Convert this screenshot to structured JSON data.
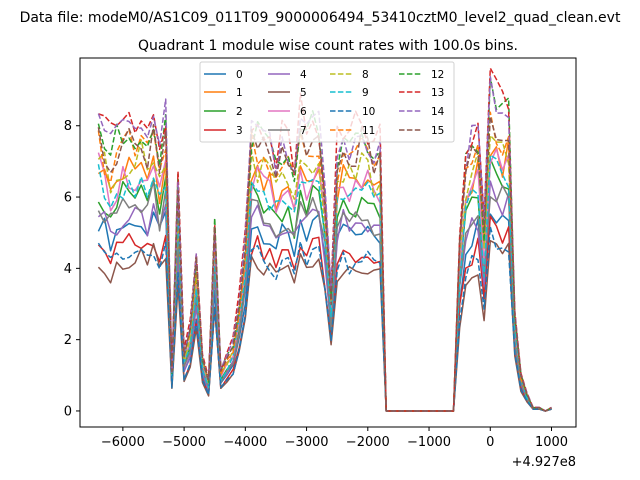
{
  "chart_data": {
    "type": "line",
    "suptitle": "Data file: modeM0/AS1C09_011T09_9000006494_53410cztM0_level2_quad_clean.evt",
    "title": "Quadrant 1 module wise count rates with 100.0s bins.",
    "xlabel": "",
    "ylabel": "",
    "x_offset_label": "+4.927e8",
    "xlim": [
      -6700,
      1400
    ],
    "ylim": [
      -0.45,
      9.9
    ],
    "xticks": [
      -6000,
      -5000,
      -4000,
      -3000,
      -2000,
      -1000,
      0,
      1000
    ],
    "xtick_labels": [
      "−6000",
      "−5000",
      "−4000",
      "−3000",
      "−2000",
      "−1000",
      "0",
      "1000"
    ],
    "yticks": [
      0,
      2,
      4,
      6,
      8
    ],
    "ytick_labels": [
      "0",
      "2",
      "4",
      "6",
      "8"
    ],
    "grid": false,
    "legend_position": "upper-center",
    "x": [
      -6400,
      -6300,
      -6200,
      -6100,
      -6000,
      -5900,
      -5800,
      -5700,
      -5600,
      -5500,
      -5400,
      -5300,
      -5200,
      -5100,
      -5000,
      -4900,
      -4800,
      -4700,
      -4600,
      -4500,
      -4400,
      -4300,
      -4200,
      -4100,
      -4000,
      -3900,
      -3800,
      -3700,
      -3600,
      -3500,
      -3400,
      -3300,
      -3200,
      -3100,
      -3000,
      -2900,
      -2800,
      -2700,
      -2600,
      -2500,
      -2400,
      -2300,
      -2200,
      -2100,
      -2000,
      -1900,
      -1800,
      -1700,
      -1600,
      -1500,
      -1400,
      -1300,
      -1200,
      -1100,
      -1000,
      -900,
      -800,
      -700,
      -600,
      -500,
      -400,
      -300,
      -200,
      -100,
      0,
      100,
      200,
      300,
      400,
      500,
      600,
      700,
      800,
      900,
      1000
    ],
    "series": [
      {
        "name": "0",
        "color": "#1f77b4",
        "style": "solid",
        "scale": 0.63
      },
      {
        "name": "1",
        "color": "#ff7f0e",
        "style": "solid",
        "scale": 0.81
      },
      {
        "name": "2",
        "color": "#2ca02c",
        "style": "solid",
        "scale": 0.73
      },
      {
        "name": "3",
        "color": "#d62728",
        "style": "solid",
        "scale": 0.56
      },
      {
        "name": "4",
        "color": "#9467bd",
        "style": "solid",
        "scale": 0.66
      },
      {
        "name": "5",
        "color": "#8c564b",
        "style": "solid",
        "scale": 0.5
      },
      {
        "name": "6",
        "color": "#e377c2",
        "style": "solid",
        "scale": 0.79
      },
      {
        "name": "7",
        "color": "#7f7f7f",
        "style": "solid",
        "scale": 0.69
      },
      {
        "name": "8",
        "color": "#bcbd22",
        "style": "dashed",
        "scale": 0.84
      },
      {
        "name": "9",
        "color": "#17becf",
        "style": "dashed",
        "scale": 0.76
      },
      {
        "name": "10",
        "color": "#1f77b4",
        "style": "dashed",
        "scale": 0.53
      },
      {
        "name": "11",
        "color": "#ff7f0e",
        "style": "dashed",
        "scale": 0.88
      },
      {
        "name": "12",
        "color": "#2ca02c",
        "style": "dashed",
        "scale": 0.94
      },
      {
        "name": "13",
        "color": "#d62728",
        "style": "dashed",
        "scale": 1.0
      },
      {
        "name": "14",
        "color": "#9467bd",
        "style": "dashed",
        "scale": 0.97
      },
      {
        "name": "15",
        "color": "#8c564b",
        "style": "dashed",
        "scale": 0.91
      }
    ],
    "base_profile": [
      8.6,
      8.1,
      7.6,
      8.0,
      8.3,
      8.4,
      8.1,
      8.6,
      8.0,
      8.8,
      7.7,
      8.5,
      1.2,
      7.0,
      1.7,
      2.4,
      4.6,
      1.6,
      0.9,
      5.5,
      1.2,
      1.6,
      2.0,
      3.3,
      5.0,
      8.3,
      8.2,
      8.0,
      7.8,
      7.3,
      7.8,
      7.7,
      7.1,
      8.6,
      7.9,
      8.4,
      8.2,
      6.5,
      3.5,
      7.5,
      8.2,
      7.7,
      7.9,
      8.2,
      8.0,
      7.5,
      7.7,
      0,
      0,
      0,
      0,
      0,
      0,
      0,
      0,
      0,
      0,
      0,
      0,
      5.0,
      7.3,
      7.8,
      8.2,
      5.3,
      9.3,
      8.9,
      8.6,
      8.8,
      2.9,
      1.1,
      0.5,
      0.1,
      0.1,
      0.0,
      0.1
    ]
  }
}
